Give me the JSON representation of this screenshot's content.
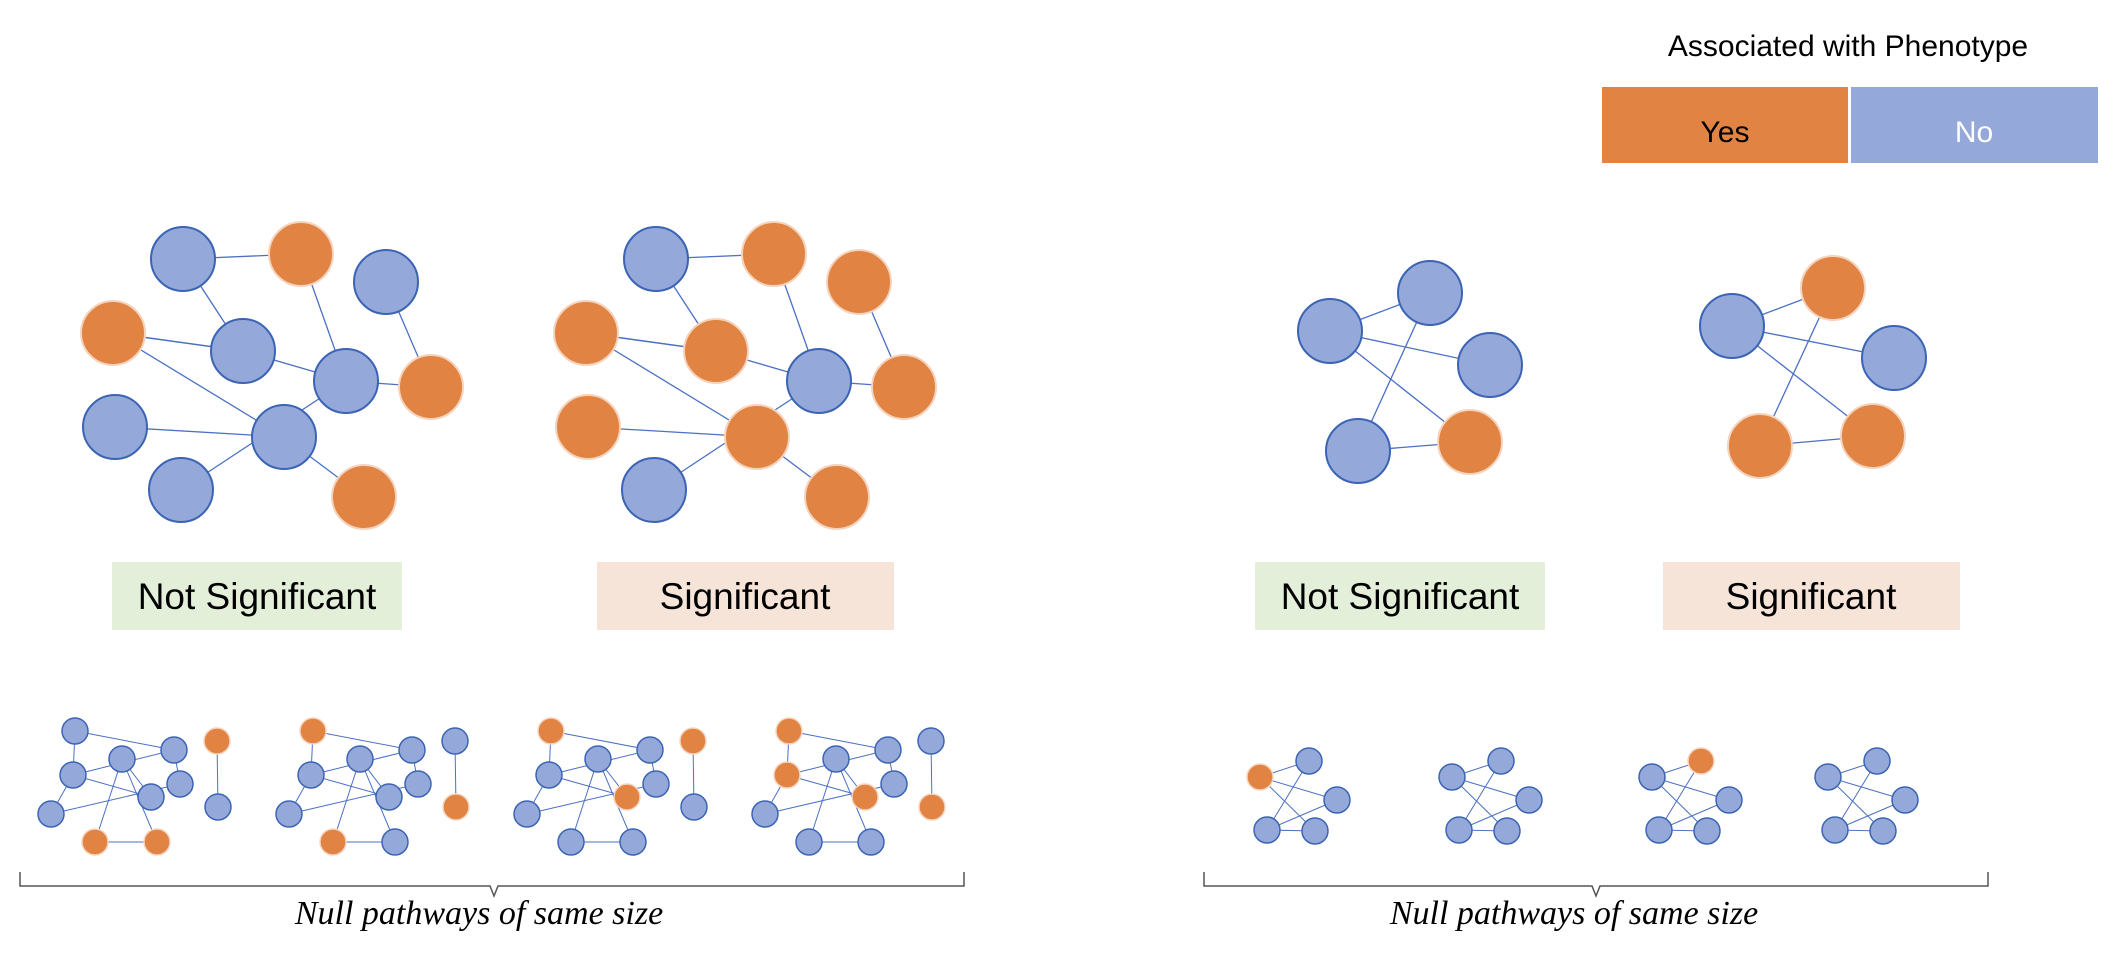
{
  "colors": {
    "yes": "#E08343",
    "no": "#94A8D9",
    "no_stroke": "#3C64B4",
    "yes_stroke": "#F5D4BE",
    "edge": "#4B70C4",
    "not_significant_bg": "#E4EFD9",
    "significant_bg": "#F6E4D8",
    "bracket": "#555555"
  },
  "legend": {
    "title": "Associated with Phenotype",
    "yes_label": "Yes",
    "no_label": "No"
  },
  "labels": {
    "left_not_significant": "Not Significant",
    "left_significant": "Significant",
    "right_not_significant": "Not Significant",
    "right_significant": "Significant"
  },
  "captions": {
    "left": "Null pathways of same size",
    "right": "Null pathways of same size"
  }
}
